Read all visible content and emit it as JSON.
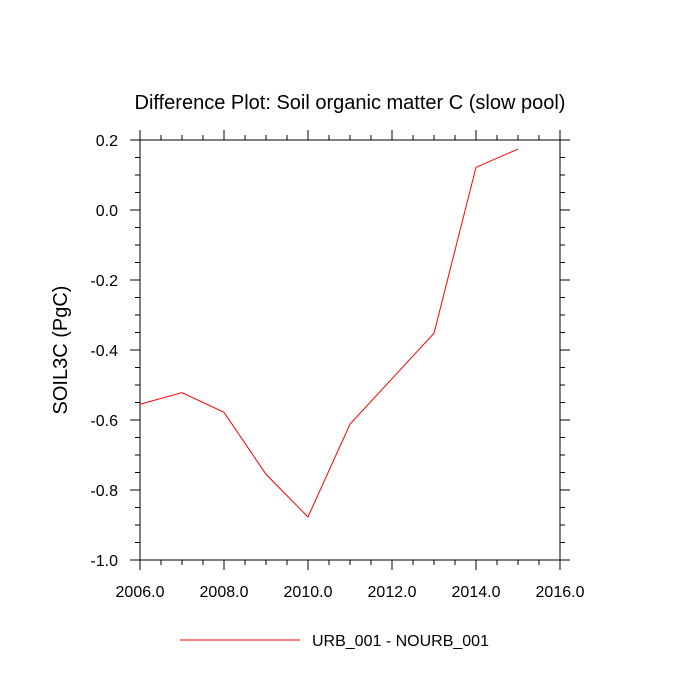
{
  "chart_data": {
    "type": "line",
    "title": "Difference Plot: Soil organic matter C (slow pool)",
    "xlabel": "",
    "ylabel": "SOIL3C  (PgC)",
    "xlim": [
      2006,
      2016
    ],
    "ylim": [
      -1.0,
      0.2
    ],
    "xticks": [
      "2006.0",
      "2008.0",
      "2010.0",
      "2012.0",
      "2014.0",
      "2016.0"
    ],
    "yticks": [
      "0.2",
      "0.0",
      "-0.2",
      "-0.4",
      "-0.6",
      "-0.8",
      "-1.0"
    ],
    "grid": false,
    "legend_position": "bottom",
    "series": [
      {
        "name": "URB_001 - NOURB_001",
        "color": "#ff0000",
        "x": [
          2006,
          2007,
          2008,
          2009,
          2010,
          2011,
          2012,
          2013,
          2014,
          2015
        ],
        "y": [
          -0.555,
          -0.522,
          -0.578,
          -0.755,
          -0.877,
          -0.612,
          -0.482,
          -0.352,
          0.122,
          0.174
        ]
      }
    ]
  }
}
